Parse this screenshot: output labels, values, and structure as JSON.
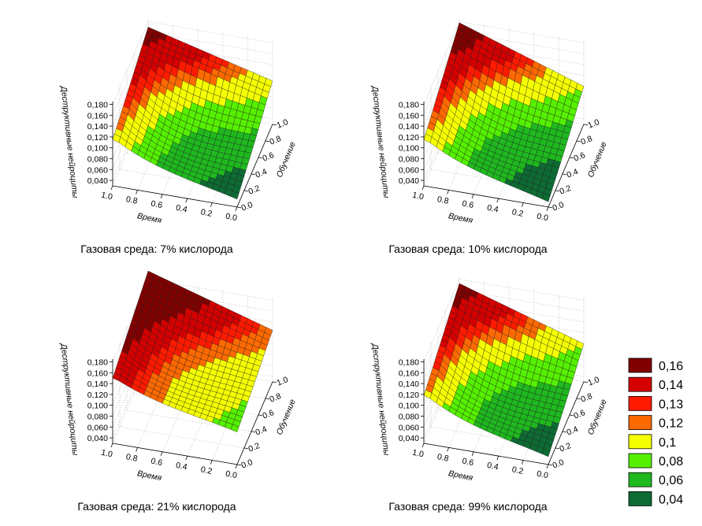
{
  "chart_data": {
    "type": "surface",
    "z_label": "Деструктивные нейроциты",
    "x_label": "Время",
    "y_label": "Обучение",
    "z_ticks": [
      "0,040",
      "0,060",
      "0,080",
      "0,100",
      "0,120",
      "0,140",
      "0,160",
      "0,180"
    ],
    "x_ticks": [
      "1.0",
      "0.8",
      "0.6",
      "0.4",
      "0.2",
      "0.0"
    ],
    "y_ticks": [
      "0.0",
      "0.2",
      "0.4",
      "0.6",
      "0.8",
      "1.0"
    ],
    "z_range": [
      0.03,
      0.18
    ],
    "grid": true,
    "panels": [
      {
        "caption": "Газовая среда: 7% кислорода",
        "corners": {
          "x1_y0": 0.115,
          "x1_y1": 0.17,
          "x0_y0": 0.045,
          "x0_y1": 0.11
        },
        "min": 0.03
      },
      {
        "caption": "Газовая среда: 10% кислорода",
        "corners": {
          "x1_y0": 0.115,
          "x1_y1": 0.178,
          "x0_y0": 0.04,
          "x0_y1": 0.1
        },
        "min": 0.03
      },
      {
        "caption": "Газовая среда: 21% кислорода",
        "corners": {
          "x1_y0": 0.15,
          "x1_y1": 0.195,
          "x0_y0": 0.09,
          "x0_y1": 0.125
        },
        "min": 0.085
      },
      {
        "caption": "Газовая среда: 99% кислорода",
        "corners": {
          "x1_y0": 0.118,
          "x1_y1": 0.172,
          "x0_y0": 0.045,
          "x0_y1": 0.1
        },
        "min": 0.03
      }
    ],
    "legend": {
      "placement": "bottom-right",
      "items": [
        {
          "label": "0,16",
          "color": "#800000",
          "threshold": 0.16
        },
        {
          "label": "0,14",
          "color": "#d40000",
          "threshold": 0.14
        },
        {
          "label": "0,13",
          "color": "#ff1a00",
          "threshold": 0.13
        },
        {
          "label": "0,12",
          "color": "#ff6a00",
          "threshold": 0.12
        },
        {
          "label": "0,1",
          "color": "#f6ff00",
          "threshold": 0.1
        },
        {
          "label": "0,08",
          "color": "#55f000",
          "threshold": 0.08
        },
        {
          "label": "0,06",
          "color": "#1fb81f",
          "threshold": 0.06
        },
        {
          "label": "0,04",
          "color": "#0d6b33",
          "threshold": 0.04
        }
      ]
    }
  }
}
